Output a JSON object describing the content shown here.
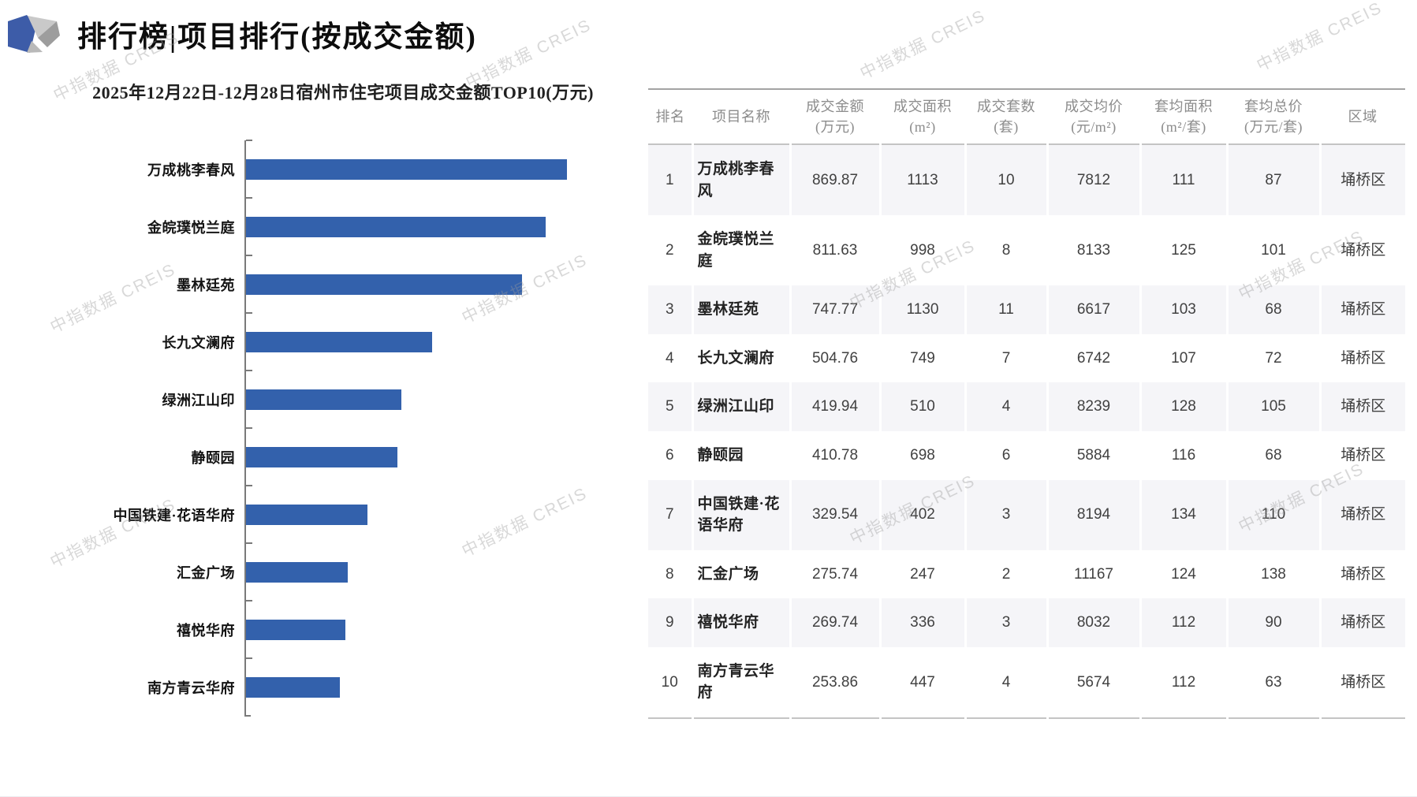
{
  "header": {
    "title": "排行榜|项目排行(按成交金额)"
  },
  "watermark": {
    "text": "中指数据 CREIS"
  },
  "chart_data": {
    "type": "bar",
    "orientation": "horizontal",
    "title": "2025年12月22日-12月28日宿州市住宅项目成交金额TOP10(万元)",
    "categories": [
      "万成桃李春风",
      "金皖璞悦兰庭",
      "墨林廷苑",
      "长九文澜府",
      "绿洲江山印",
      "静颐园",
      "中国铁建·花语华府",
      "汇金广场",
      "禧悦华府",
      "南方青云华府"
    ],
    "values": [
      869.87,
      811.63,
      747.77,
      504.76,
      419.94,
      410.78,
      329.54,
      275.74,
      269.74,
      253.86
    ],
    "xlabel": "",
    "ylabel": "",
    "unit": "万元",
    "xlim": [
      0,
      900
    ],
    "grid": false,
    "legend": false,
    "bar_color": "#3361ac"
  },
  "table": {
    "columns": [
      {
        "label": "排名",
        "unit": ""
      },
      {
        "label": "项目名称",
        "unit": ""
      },
      {
        "label": "成交金额",
        "unit": "(万元)"
      },
      {
        "label": "成交面积",
        "unit": "(m²)"
      },
      {
        "label": "成交套数",
        "unit": "(套)"
      },
      {
        "label": "成交均价",
        "unit": "(元/m²)"
      },
      {
        "label": "套均面积",
        "unit": "(m²/套)"
      },
      {
        "label": "套均总价",
        "unit": "(万元/套)"
      },
      {
        "label": "区域",
        "unit": ""
      }
    ],
    "rows": [
      [
        "1",
        "万成桃李春风",
        "869.87",
        "1113",
        "10",
        "7812",
        "111",
        "87",
        "埇桥区"
      ],
      [
        "2",
        "金皖璞悦兰庭",
        "811.63",
        "998",
        "8",
        "8133",
        "125",
        "101",
        "埇桥区"
      ],
      [
        "3",
        "墨林廷苑",
        "747.77",
        "1130",
        "11",
        "6617",
        "103",
        "68",
        "埇桥区"
      ],
      [
        "4",
        "长九文澜府",
        "504.76",
        "749",
        "7",
        "6742",
        "107",
        "72",
        "埇桥区"
      ],
      [
        "5",
        "绿洲江山印",
        "419.94",
        "510",
        "4",
        "8239",
        "128",
        "105",
        "埇桥区"
      ],
      [
        "6",
        "静颐园",
        "410.78",
        "698",
        "6",
        "5884",
        "116",
        "68",
        "埇桥区"
      ],
      [
        "7",
        "中国铁建·花语华府",
        "329.54",
        "402",
        "3",
        "8194",
        "134",
        "110",
        "埇桥区"
      ],
      [
        "8",
        "汇金广场",
        "275.74",
        "247",
        "2",
        "11167",
        "124",
        "138",
        "埇桥区"
      ],
      [
        "9",
        "禧悦华府",
        "269.74",
        "336",
        "3",
        "8032",
        "112",
        "90",
        "埇桥区"
      ],
      [
        "10",
        "南方青云华府",
        "253.86",
        "447",
        "4",
        "5674",
        "112",
        "63",
        "埇桥区"
      ]
    ]
  }
}
